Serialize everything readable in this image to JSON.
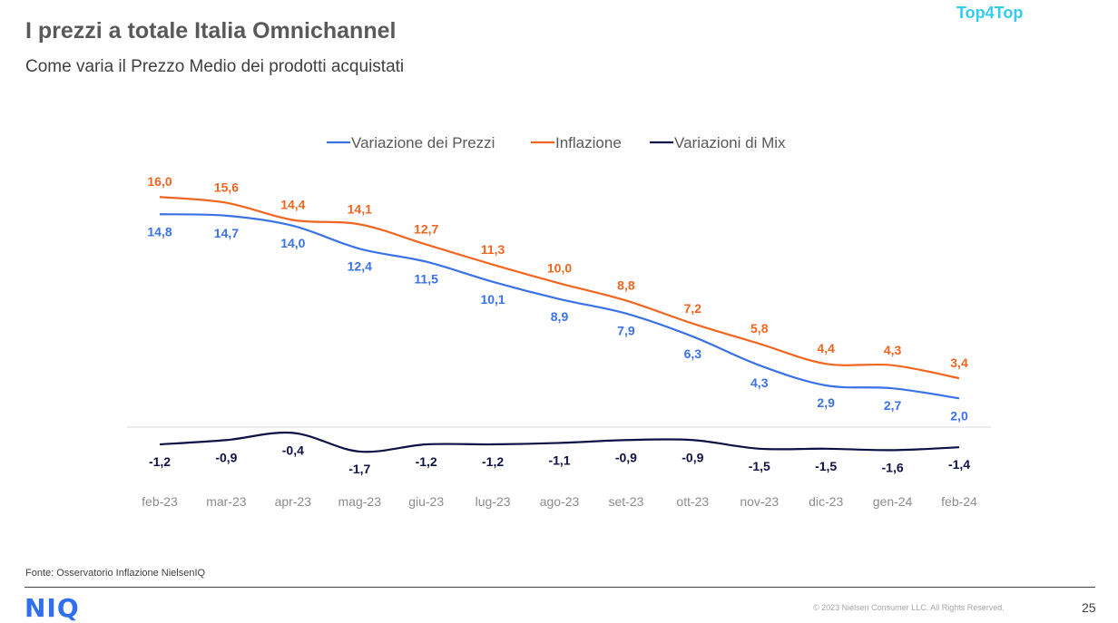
{
  "header": {
    "title": "I prezzi a totale Italia Omnichannel",
    "subtitle": "Come varia il Prezzo Medio dei prodotti acquistati",
    "brand_tag": "Top4Top"
  },
  "footer": {
    "source": "Fonte: Osservatorio Inflazione NielsenIQ",
    "logo": "NIQ",
    "copyright": "© 2023 Nielsen Consumer LLC. All Rights Reserved.",
    "page_number": "25"
  },
  "colors": {
    "prezzi": "#3a72e6",
    "inflazione": "#f0651f",
    "mix": "#0d1145",
    "axis": "#d9d9d9"
  },
  "chart_data": {
    "type": "line",
    "title": "",
    "xlabel": "",
    "ylabel": "",
    "legend_position": "top",
    "grid": false,
    "categories": [
      "feb-23",
      "mar-23",
      "apr-23",
      "mag-23",
      "giu-23",
      "lug-23",
      "ago-23",
      "set-23",
      "ott-23",
      "nov-23",
      "dic-23",
      "gen-24",
      "feb-24"
    ],
    "series": [
      {
        "name": "Variazione dei Prezzi",
        "color": "#3a72e6",
        "label_pos": "below",
        "values": [
          14.8,
          14.7,
          14.0,
          12.4,
          11.5,
          10.1,
          8.9,
          7.9,
          6.3,
          4.3,
          2.9,
          2.7,
          2.0
        ],
        "labels": [
          "14,8",
          "14,7",
          "14,0",
          "12,4",
          "11,5",
          "10,1",
          "8,9",
          "7,9",
          "6,3",
          "4,3",
          "2,9",
          "2,7",
          "2,0"
        ]
      },
      {
        "name": "Inflazione",
        "color": "#f0651f",
        "label_pos": "above",
        "values": [
          16.0,
          15.6,
          14.4,
          14.1,
          12.7,
          11.3,
          10.0,
          8.8,
          7.2,
          5.8,
          4.4,
          4.3,
          3.4
        ],
        "labels": [
          "16,0",
          "15,6",
          "14,4",
          "14,1",
          "12,7",
          "11,3",
          "10,0",
          "8,8",
          "7,2",
          "5,8",
          "4,4",
          "4,3",
          "3,4"
        ]
      },
      {
        "name": "Variazioni di Mix",
        "color": "#0d1145",
        "label_pos": "below",
        "values": [
          -1.2,
          -0.9,
          -0.4,
          -1.7,
          -1.2,
          -1.2,
          -1.1,
          -0.9,
          -0.9,
          -1.5,
          -1.5,
          -1.6,
          -1.4
        ],
        "labels": [
          "-1,2",
          "-0,9",
          "-0,4",
          "-1,7",
          "-1,2",
          "-1,2",
          "-1,1",
          "-0,9",
          "-0,9",
          "-1,5",
          "-1,5",
          "-1,6",
          "-1,4"
        ]
      }
    ]
  }
}
